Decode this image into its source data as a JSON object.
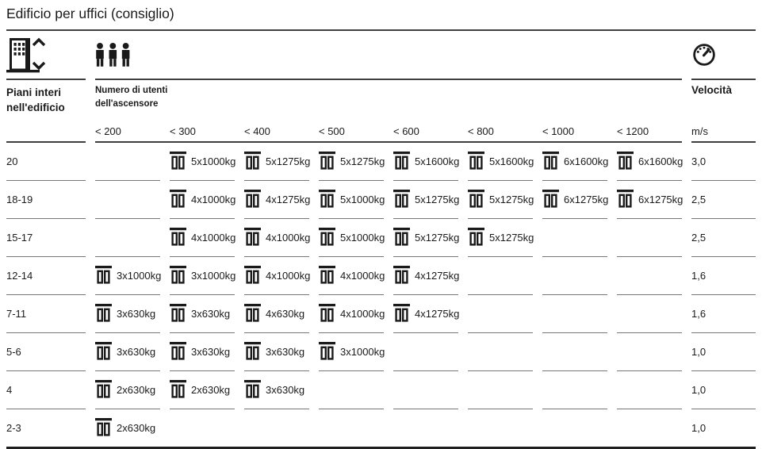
{
  "title": "Edificio per uffici (consiglio)",
  "header": {
    "floors_label_line1": "Piani interi",
    "floors_label_line2": "nell'edificio",
    "users_label_line1": "Numero di utenti",
    "users_label_line2": "dell'ascensore",
    "speed_label": "Velocità",
    "speed_unit": "m/s",
    "user_columns": [
      "< 200",
      "< 300",
      "< 400",
      "< 500",
      "< 600",
      "< 800",
      "< 1000",
      "< 1200"
    ],
    "icons": {
      "floors": "building-elevator-icon",
      "users": "three-people-icon",
      "speed": "speedometer-icon",
      "cell": "elevator-icon"
    }
  },
  "rows": [
    {
      "floors": "20",
      "cells": [
        "",
        "5x1000kg",
        "5x1275kg",
        "5x1275kg",
        "5x1600kg",
        "5x1600kg",
        "6x1600kg",
        "6x1600kg"
      ],
      "speed": "3,0"
    },
    {
      "floors": "18-19",
      "cells": [
        "",
        "4x1000kg",
        "4x1275kg",
        "5x1000kg",
        "5x1275kg",
        "5x1275kg",
        "6x1275kg",
        "6x1275kg"
      ],
      "speed": "2,5"
    },
    {
      "floors": "15-17",
      "cells": [
        "",
        "4x1000kg",
        "4x1000kg",
        "5x1000kg",
        "5x1275kg",
        "5x1275kg",
        "",
        ""
      ],
      "speed": "2,5"
    },
    {
      "floors": "12-14",
      "cells": [
        "3x1000kg",
        "3x1000kg",
        "4x1000kg",
        "4x1000kg",
        "4x1275kg",
        "",
        "",
        ""
      ],
      "speed": "1,6"
    },
    {
      "floors": "7-11",
      "cells": [
        "3x630kg",
        "3x630kg",
        "4x630kg",
        "4x1000kg",
        "4x1275kg",
        "",
        "",
        ""
      ],
      "speed": "1,6"
    },
    {
      "floors": "5-6",
      "cells": [
        "3x630kg",
        "3x630kg",
        "3x630kg",
        "3x1000kg",
        "",
        "",
        "",
        ""
      ],
      "speed": "1,0"
    },
    {
      "floors": "4",
      "cells": [
        "2x630kg",
        "2x630kg",
        "3x630kg",
        "",
        "",
        "",
        "",
        ""
      ],
      "speed": "1,0"
    },
    {
      "floors": "2-3",
      "cells": [
        "2x630kg",
        "",
        "",
        "",
        "",
        "",
        "",
        ""
      ],
      "speed": "1,0"
    }
  ],
  "colors": {
    "text": "#1a1a1a",
    "header_rule": "#3f3f3f",
    "row_rule": "#757575",
    "bottom_rule": "#1f1f1f"
  }
}
